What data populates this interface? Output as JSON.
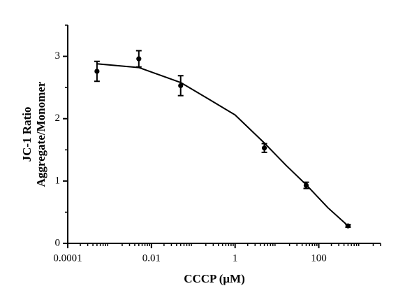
{
  "chart_data": {
    "type": "scatter",
    "x_label": "CCCP (μM)",
    "y_label": [
      "JC-1 Ratio",
      "Aggregate/Monomer"
    ],
    "xscale": "log",
    "xlim": [
      0.0001,
      3000
    ],
    "xticks": [
      0.0001,
      0.01,
      1,
      100
    ],
    "ylim": [
      0,
      3.5
    ],
    "yticks": [
      0,
      1,
      2,
      3
    ],
    "grid": false,
    "series": [
      {
        "color": "#000000",
        "x": [
          0.0005,
          0.005,
          0.05,
          5,
          50,
          500
        ],
        "values": [
          2.76,
          2.96,
          2.53,
          1.53,
          0.93,
          0.28
        ],
        "errors": [
          0.16,
          0.13,
          0.16,
          0.07,
          0.05,
          0.02
        ]
      }
    ],
    "fit": {
      "color": "#000000",
      "x": [
        0.0005,
        0.005,
        0.05,
        0.24,
        1,
        5,
        16.6,
        50,
        166,
        500
      ],
      "values": [
        2.88,
        2.82,
        2.58,
        2.31,
        2.06,
        1.61,
        1.25,
        0.94,
        0.57,
        0.28
      ]
    }
  }
}
